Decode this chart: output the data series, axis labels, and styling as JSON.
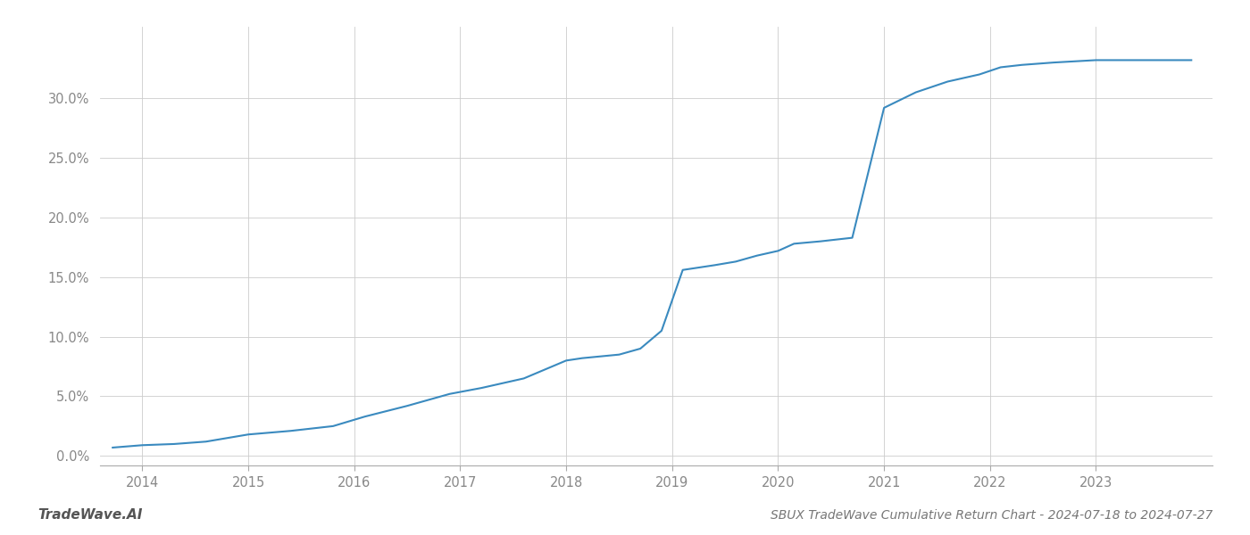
{
  "title": "SBUX TradeWave Cumulative Return Chart - 2024-07-18 to 2024-07-27",
  "watermark": "TradeWave.AI",
  "line_color": "#3a8abf",
  "background_color": "#ffffff",
  "grid_color": "#cccccc",
  "x_values": [
    2013.72,
    2014.0,
    2014.3,
    2014.6,
    2015.0,
    2015.4,
    2015.8,
    2016.1,
    2016.5,
    2016.9,
    2017.2,
    2017.6,
    2018.0,
    2018.15,
    2018.5,
    2018.7,
    2018.9,
    2019.1,
    2019.4,
    2019.6,
    2019.8,
    2020.0,
    2020.15,
    2020.4,
    2020.7,
    2021.0,
    2021.3,
    2021.6,
    2021.9,
    2022.1,
    2022.3,
    2022.6,
    2023.0,
    2023.5,
    2023.9
  ],
  "y_values": [
    0.007,
    0.009,
    0.01,
    0.012,
    0.018,
    0.021,
    0.025,
    0.033,
    0.042,
    0.052,
    0.057,
    0.065,
    0.08,
    0.082,
    0.085,
    0.09,
    0.105,
    0.156,
    0.16,
    0.163,
    0.168,
    0.172,
    0.178,
    0.18,
    0.183,
    0.292,
    0.305,
    0.314,
    0.32,
    0.326,
    0.328,
    0.33,
    0.332,
    0.332,
    0.332
  ],
  "xlim": [
    2013.6,
    2024.1
  ],
  "ylim": [
    -0.008,
    0.36
  ],
  "yticks": [
    0.0,
    0.05,
    0.1,
    0.15,
    0.2,
    0.25,
    0.3
  ],
  "ytick_labels": [
    "0.0%",
    "5.0%",
    "10.0%",
    "15.0%",
    "20.0%",
    "25.0%",
    "30.0%"
  ],
  "xticks": [
    2014,
    2015,
    2016,
    2017,
    2018,
    2019,
    2020,
    2021,
    2022,
    2023
  ],
  "line_width": 1.5,
  "title_fontsize": 10,
  "tick_fontsize": 10.5,
  "watermark_fontsize": 11
}
